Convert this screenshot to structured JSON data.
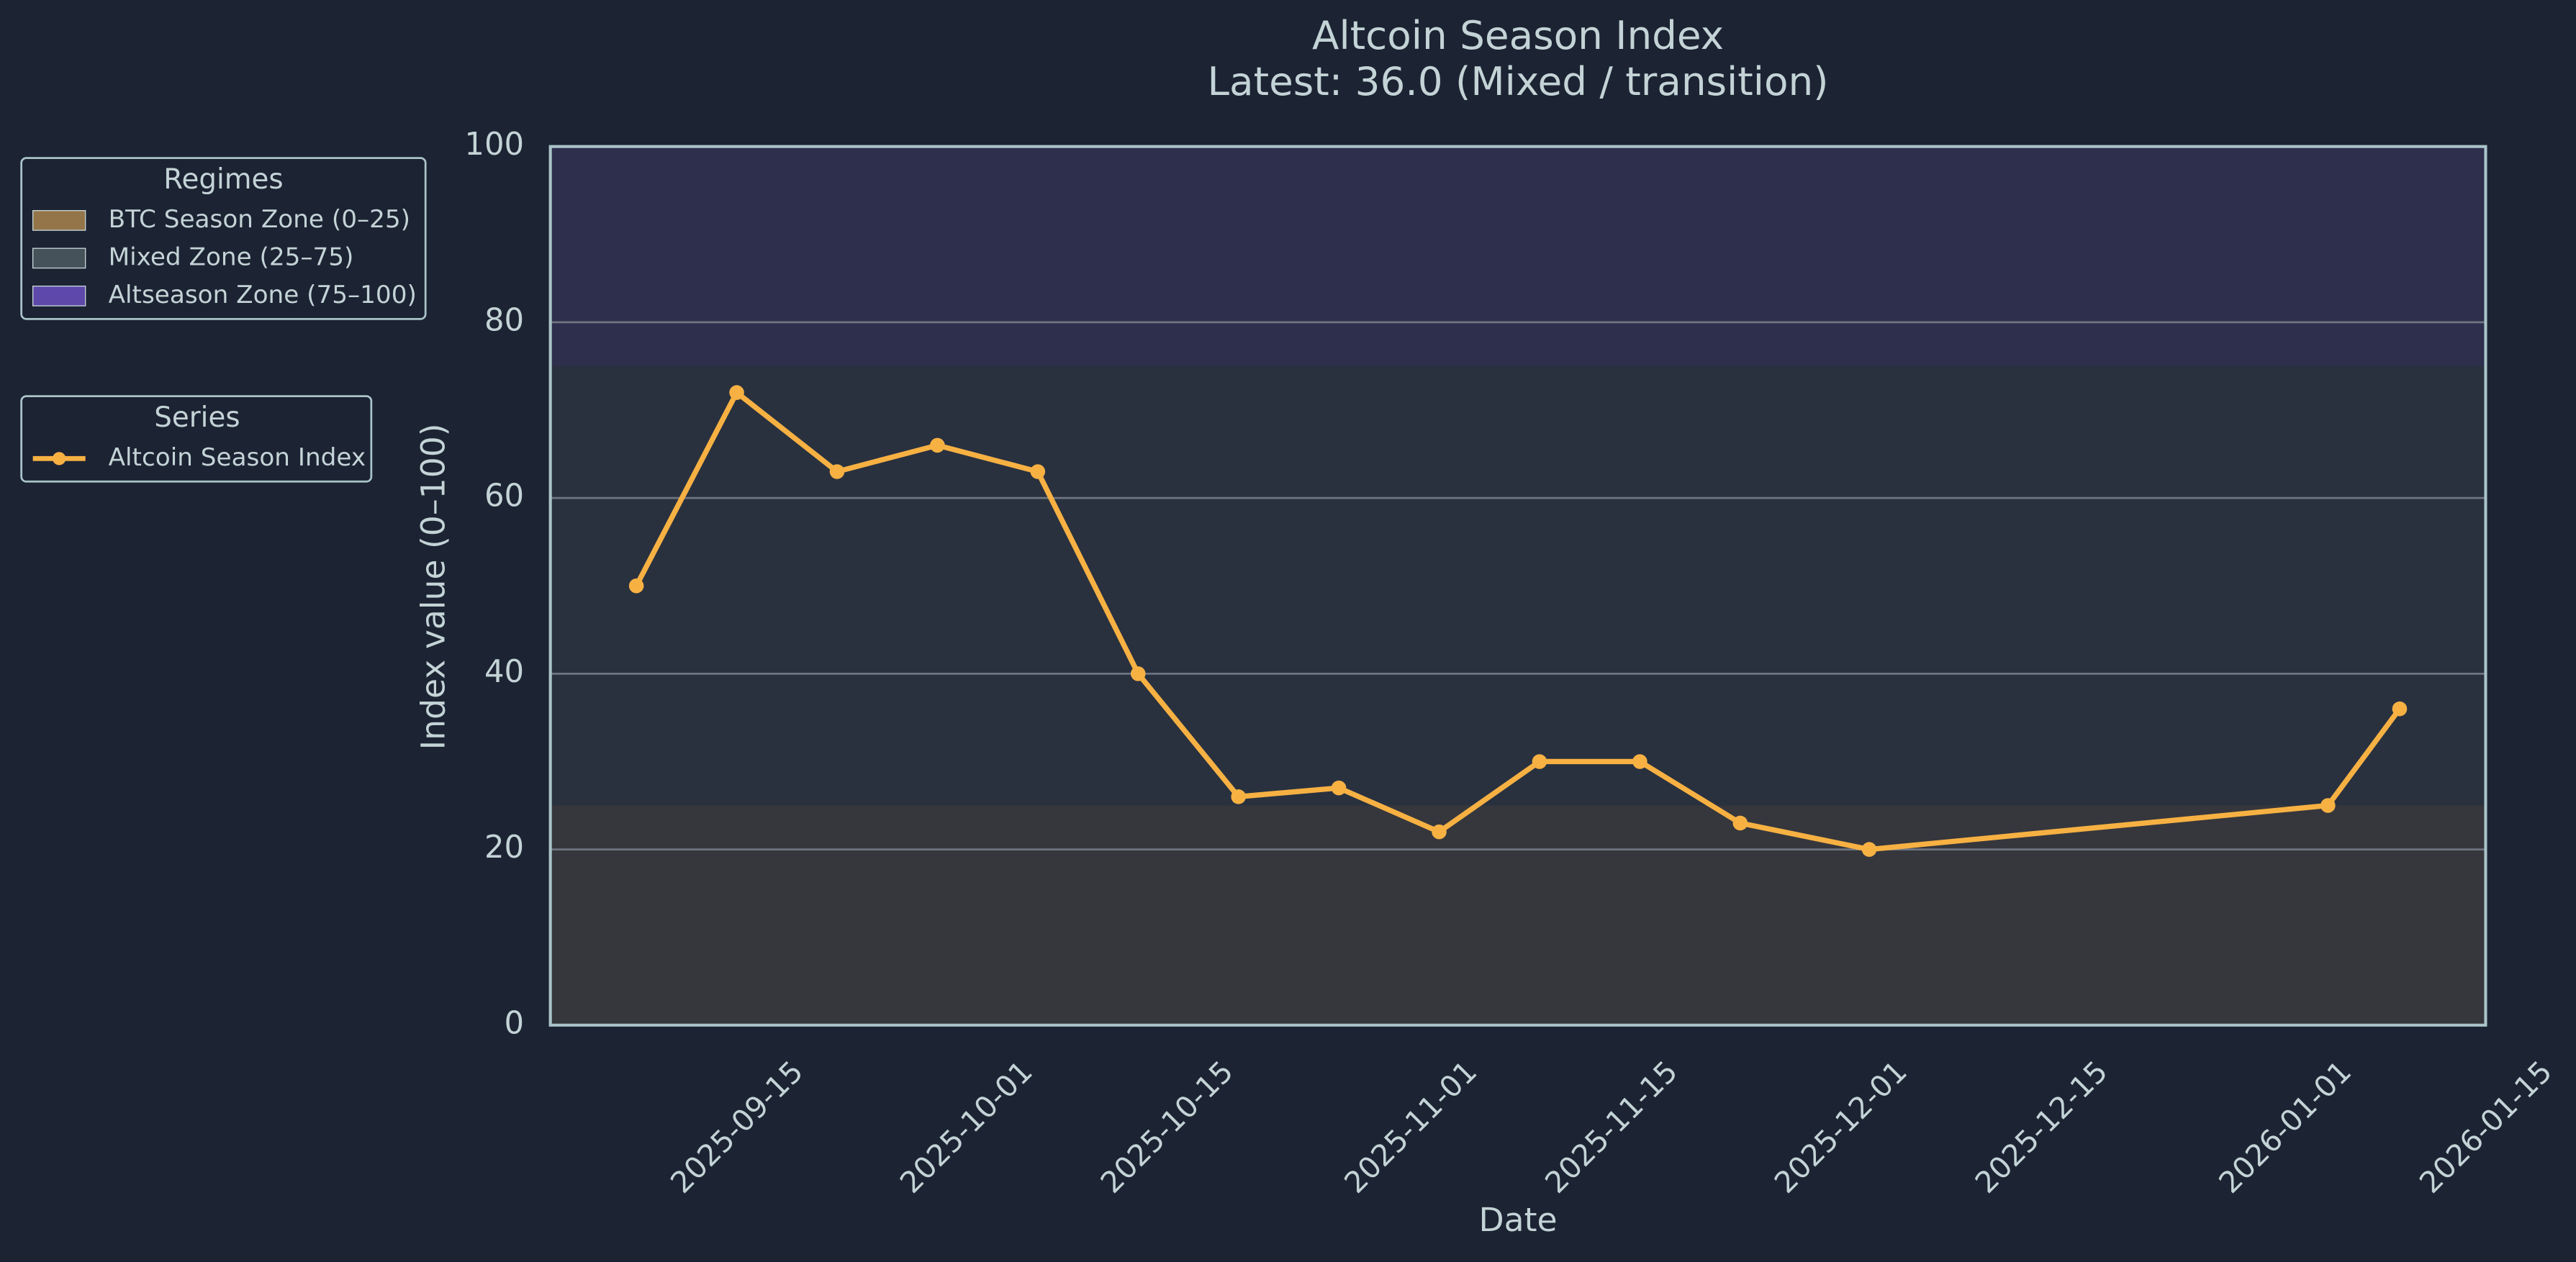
{
  "chart_data": {
    "type": "line",
    "title": "Altcoin Season Index",
    "subtitle": "Latest: 36.0 (Mixed / transition)",
    "x_label": "Date",
    "y_label": "Index value (0–100)",
    "x": [
      "2025-09-08",
      "2025-09-15",
      "2025-09-22",
      "2025-09-29",
      "2025-10-06",
      "2025-10-13",
      "2025-10-20",
      "2025-10-27",
      "2025-11-03",
      "2025-11-10",
      "2025-11-17",
      "2025-11-24",
      "2025-12-03",
      "2026-01-04",
      "2026-01-09"
    ],
    "series": [
      {
        "name": "Altcoin Season Index",
        "color": "#f7b143",
        "values": [
          50,
          72,
          63,
          66,
          63,
          40,
          26,
          27,
          22,
          30,
          30,
          23,
          20,
          25,
          36
        ]
      }
    ],
    "xlim": [
      "2025-09-02",
      "2026-01-15"
    ],
    "xticks": [
      "2025-09-15",
      "2025-10-01",
      "2025-10-15",
      "2025-11-01",
      "2025-11-15",
      "2025-12-01",
      "2025-12-15",
      "2026-01-01",
      "2026-01-15"
    ],
    "ylim": [
      0,
      100
    ],
    "yticks": [
      0,
      20,
      40,
      60,
      80,
      100
    ],
    "grid": true,
    "zones_title": "Regimes",
    "series_legend_title": "Series",
    "zones": [
      {
        "name": "BTC Season Zone (0–25)",
        "from": 0,
        "to": 25,
        "color": "#a9844e"
      },
      {
        "name": "Mixed Zone (25–75)",
        "from": 25,
        "to": 75,
        "color": "#4d5a60"
      },
      {
        "name": "Altseason Zone (75–100)",
        "from": 75,
        "to": 100,
        "color": "#6a4fc0"
      }
    ]
  }
}
